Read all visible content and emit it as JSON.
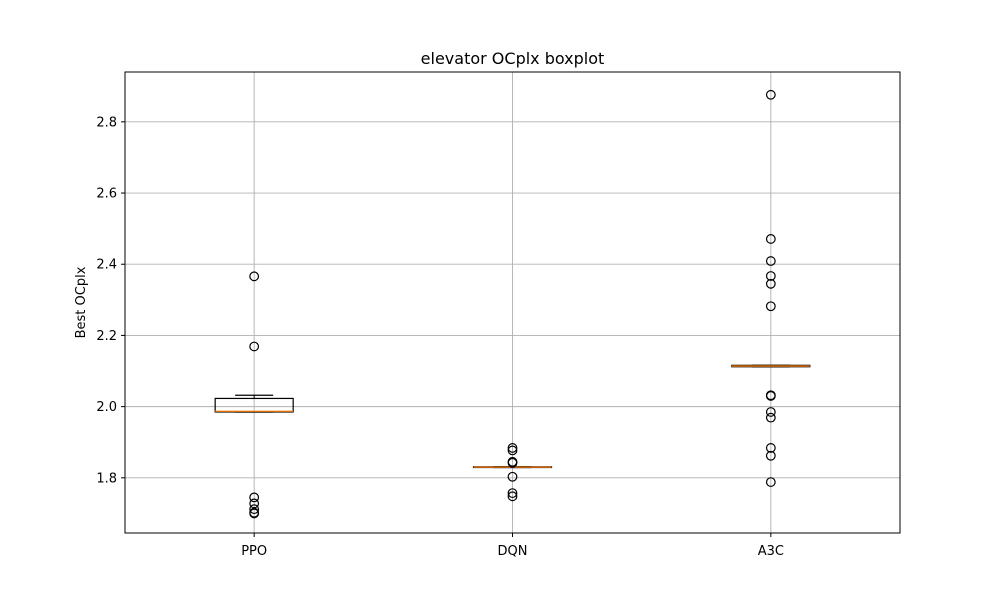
{
  "chart_data": {
    "type": "boxplot",
    "title": "elevator OCplx boxplot",
    "xlabel": "",
    "ylabel": "Best OCplx",
    "ylim": [
      1.645,
      2.94
    ],
    "yticks": [
      1.8,
      2.0,
      2.2,
      2.4,
      2.6,
      2.8
    ],
    "ytick_labels": [
      "1.8",
      "2.0",
      "2.2",
      "2.4",
      "2.6",
      "2.8"
    ],
    "grid": true,
    "legend": "none",
    "categories": [
      "PPO",
      "DQN",
      "A3C"
    ],
    "boxes": [
      {
        "name": "PPO",
        "q1": 1.985,
        "median": 1.987,
        "q3": 2.023,
        "whisker_low": 1.985,
        "whisker_high": 2.032,
        "outliers": [
          2.366,
          2.169,
          1.745,
          1.728,
          1.712,
          1.702,
          1.7
        ]
      },
      {
        "name": "DQN",
        "q1": 1.829,
        "median": 1.83,
        "q3": 1.831,
        "whisker_low": 1.829,
        "whisker_high": 1.831,
        "outliers": [
          1.884,
          1.877,
          1.845,
          1.842,
          1.803,
          1.757,
          1.748
        ]
      },
      {
        "name": "A3C",
        "q1": 2.112,
        "median": 2.114,
        "q3": 2.116,
        "whisker_low": 2.112,
        "whisker_high": 2.116,
        "outliers": [
          2.876,
          2.471,
          2.409,
          2.367,
          2.345,
          2.282,
          2.032,
          2.03,
          1.985,
          1.969,
          1.884,
          1.862,
          1.788
        ]
      }
    ],
    "colors": {
      "median": "#ff7f0e",
      "box": "#000000",
      "grid": "#b0b0b0",
      "outlier": "#000000"
    }
  }
}
